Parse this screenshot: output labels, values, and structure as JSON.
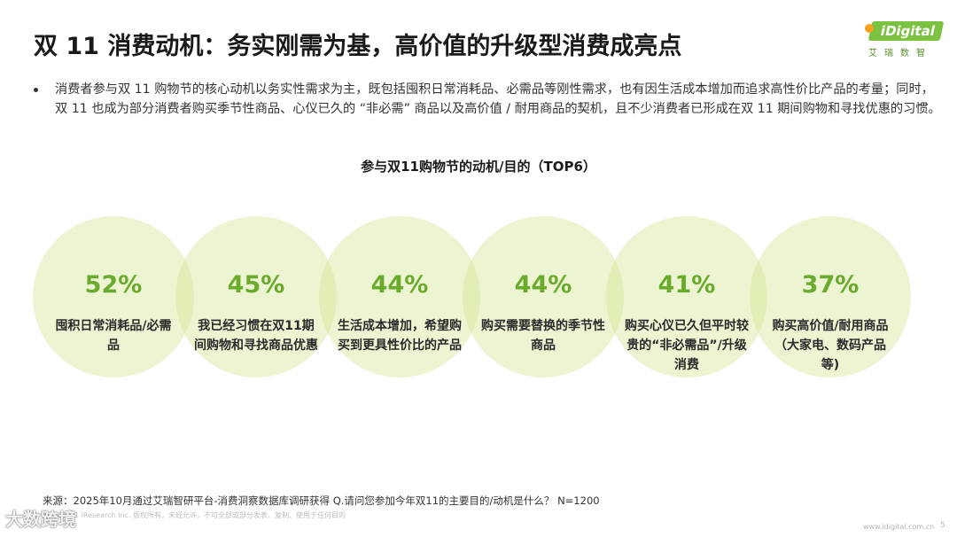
{
  "header": {
    "title": "双 11 消费动机：务实刚需为基，高价值的升级型消费成亮点"
  },
  "logo": {
    "brand": "iDigital",
    "subtitle": "艾瑞数智"
  },
  "bullet": {
    "text": "消费者参与双 11 购物节的核心动机以务实性需求为主，既包括囤积日常消耗品、必需品等刚性需求，也有因生活成本增加而追求高性价比产品的考量；同时，双 11 也成为部分消费者购买季节性商品、心仪已久的 “非必需” 商品以及高价值 / 耐用商品的契机，且不少消费者已形成在双 11 期间购物和寻找优惠的习惯。"
  },
  "chart_data": {
    "type": "bar",
    "title": "参与双11购物节的动机/目的（TOP6）",
    "categories": [
      "囤积日常消耗品/必需品",
      "我已经习惯在双11期间购物和寻找商品优惠",
      "生活成本增加，希望购买到更具性价比的产品",
      "购买需要替换的季节性商品",
      "购买心仪已久但平时较贵的“非必需品”/升级消费",
      "购买高价值/耐用商品（大家电、数码产品等)"
    ],
    "values": [
      52,
      45,
      44,
      44,
      41,
      37
    ],
    "value_labels": [
      "52%",
      "45%",
      "44%",
      "44%",
      "41%",
      "37%"
    ],
    "unit": "%",
    "colors": {
      "circle": "#d1e492",
      "value": "#6aaa2c"
    }
  },
  "footer": {
    "source": "来源：2025年10月通过艾瑞智研平台-消费洞察数据库调研获得 Q.请问您参加今年双11的主要目的/动机是什么？ N=1200",
    "copyright": "©2025.11 iResearch Inc.  版权所有，未经允许，不可全部或部分发表、复制、使用于任何目的",
    "url": "www.idigital.com.cn",
    "page": "5",
    "watermark": "大数跨境"
  }
}
